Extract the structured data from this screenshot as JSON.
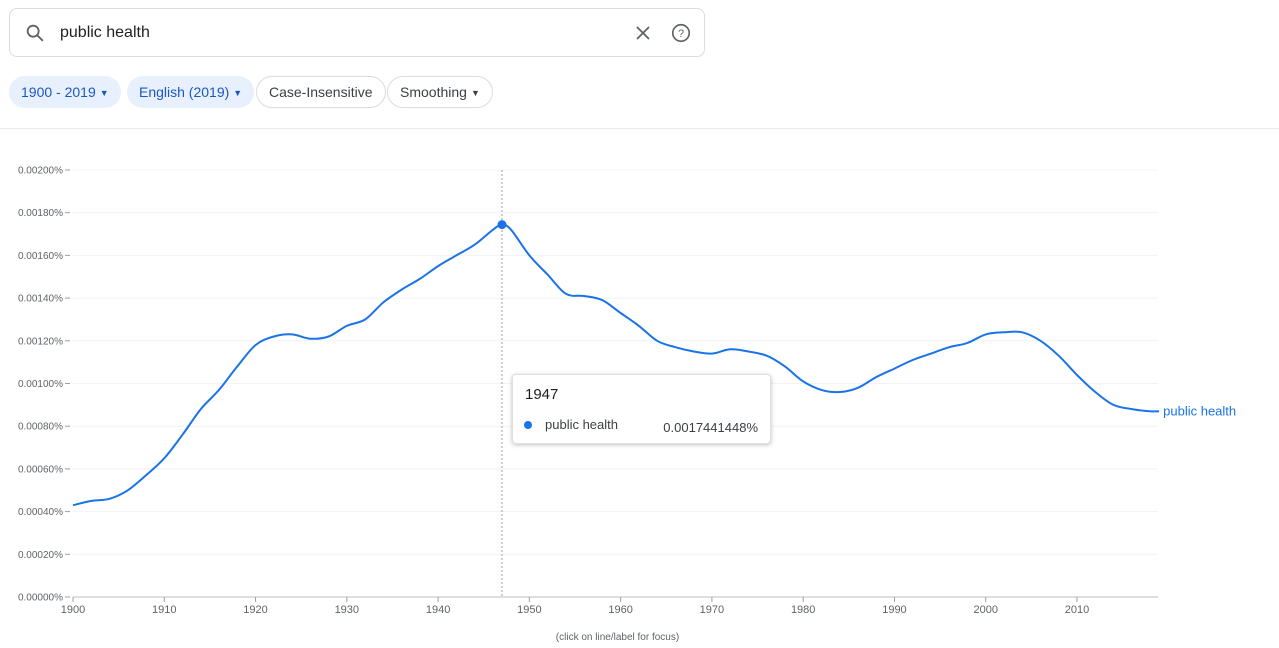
{
  "search": {
    "query": "public health",
    "search_icon": "search-icon",
    "clear_icon": "close-icon",
    "help_icon": "help-icon"
  },
  "filters": {
    "year_range": "1900 - 2019",
    "corpus": "English (2019)",
    "case": "Case-Insensitive",
    "smoothing": "Smoothing"
  },
  "colors": {
    "series": "#1a73e8",
    "chip_active_bg": "#e8f0fe",
    "chip_active_text": "#1a57c6"
  },
  "tooltip": {
    "year": "1947",
    "label": "public health",
    "value": "0.0017441448%"
  },
  "footnote": "(click on line/label for focus)",
  "chart_data": {
    "type": "line",
    "title": "",
    "xlabel": "",
    "ylabel": "",
    "xlim": [
      1900,
      2019
    ],
    "ylim": [
      0,
      0.002
    ],
    "x_ticks": [
      1900,
      1910,
      1920,
      1930,
      1940,
      1950,
      1960,
      1970,
      1980,
      1990,
      2000,
      2010
    ],
    "y_ticks": [
      "0.00000%",
      "0.00020%",
      "0.00040%",
      "0.00060%",
      "0.00080%",
      "0.00100%",
      "0.00120%",
      "0.00140%",
      "0.00160%",
      "0.00180%",
      "0.00200%"
    ],
    "grid": true,
    "legend": "end-of-line label",
    "highlight": {
      "year": 1947,
      "value": 0.0017441448
    },
    "series": [
      {
        "name": "public health",
        "x": [
          1900,
          1902,
          1904,
          1906,
          1908,
          1910,
          1912,
          1914,
          1916,
          1918,
          1920,
          1922,
          1924,
          1926,
          1928,
          1930,
          1932,
          1934,
          1936,
          1938,
          1940,
          1942,
          1944,
          1946,
          1947,
          1948,
          1950,
          1952,
          1954,
          1956,
          1958,
          1960,
          1962,
          1964,
          1966,
          1968,
          1970,
          1972,
          1974,
          1976,
          1978,
          1980,
          1982,
          1984,
          1986,
          1988,
          1990,
          1992,
          1994,
          1996,
          1998,
          2000,
          2002,
          2004,
          2006,
          2008,
          2010,
          2012,
          2014,
          2016,
          2018,
          2019
        ],
        "y": [
          0.00043,
          0.00045,
          0.00046,
          0.0005,
          0.00057,
          0.00065,
          0.00076,
          0.00088,
          0.00097,
          0.00108,
          0.00118,
          0.00122,
          0.00123,
          0.00121,
          0.00122,
          0.00127,
          0.0013,
          0.00138,
          0.00144,
          0.00149,
          0.00155,
          0.0016,
          0.00165,
          0.00172,
          0.0017441448,
          0.00172,
          0.0016,
          0.00151,
          0.00142,
          0.00141,
          0.00139,
          0.00133,
          0.00127,
          0.0012,
          0.00117,
          0.00115,
          0.00114,
          0.00116,
          0.00115,
          0.00113,
          0.00108,
          0.00101,
          0.00097,
          0.00096,
          0.00098,
          0.00103,
          0.00107,
          0.00111,
          0.00114,
          0.00117,
          0.00119,
          0.00123,
          0.00124,
          0.00124,
          0.0012,
          0.00113,
          0.00104,
          0.00096,
          0.0009,
          0.00088,
          0.00087,
          0.00087
        ]
      }
    ]
  }
}
